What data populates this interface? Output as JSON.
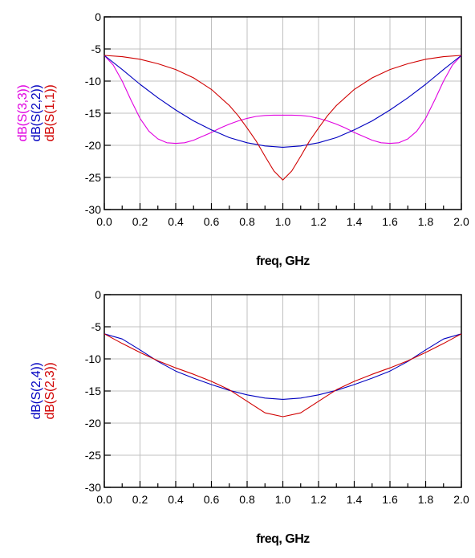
{
  "chart_data": [
    {
      "type": "line",
      "xlabel": "freq, GHz",
      "xlim": [
        0,
        2.0
      ],
      "ylim": [
        -30,
        0
      ],
      "xticks": [
        "0.0",
        "0.2",
        "0.4",
        "0.6",
        "0.8",
        "1.0",
        "1.2",
        "1.4",
        "1.6",
        "1.8",
        "2.0"
      ],
      "yticks": [
        "0",
        "-5",
        "-10",
        "-15",
        "-20",
        "-25",
        "-30"
      ],
      "grid": true,
      "series": [
        {
          "name": "dB(S(3,3))",
          "color": "#e000e0",
          "x": [
            0.0,
            0.05,
            0.1,
            0.15,
            0.2,
            0.25,
            0.3,
            0.35,
            0.4,
            0.45,
            0.5,
            0.55,
            0.6,
            0.65,
            0.7,
            0.75,
            0.8,
            0.85,
            0.9,
            0.95,
            1.0,
            1.05,
            1.1,
            1.15,
            1.2,
            1.25,
            1.3,
            1.35,
            1.4,
            1.45,
            1.5,
            1.55,
            1.6,
            1.65,
            1.7,
            1.75,
            1.8,
            1.85,
            1.9,
            1.95,
            2.0
          ],
          "y": [
            -6.0,
            -7.5,
            -10.0,
            -13.0,
            -15.8,
            -17.8,
            -19.0,
            -19.6,
            -19.7,
            -19.6,
            -19.2,
            -18.6,
            -18.0,
            -17.3,
            -16.7,
            -16.2,
            -15.8,
            -15.5,
            -15.35,
            -15.3,
            -15.3,
            -15.3,
            -15.35,
            -15.5,
            -15.8,
            -16.2,
            -16.7,
            -17.3,
            -18.0,
            -18.6,
            -19.2,
            -19.6,
            -19.7,
            -19.6,
            -19.0,
            -17.8,
            -15.8,
            -13.0,
            -10.0,
            -7.5,
            -6.0
          ]
        },
        {
          "name": "dB(S(2,2))",
          "color": "#0000c0",
          "x": [
            0.0,
            0.1,
            0.2,
            0.3,
            0.4,
            0.5,
            0.6,
            0.7,
            0.8,
            0.9,
            1.0,
            1.1,
            1.2,
            1.3,
            1.4,
            1.5,
            1.6,
            1.7,
            1.8,
            1.9,
            2.0
          ],
          "y": [
            -6.0,
            -8.2,
            -10.5,
            -12.6,
            -14.5,
            -16.2,
            -17.6,
            -18.8,
            -19.6,
            -20.1,
            -20.3,
            -20.1,
            -19.6,
            -18.8,
            -17.6,
            -16.2,
            -14.5,
            -12.6,
            -10.5,
            -8.2,
            -6.0
          ]
        },
        {
          "name": "dB(S(1,1))",
          "color": "#d00000",
          "x": [
            0.0,
            0.1,
            0.2,
            0.3,
            0.4,
            0.5,
            0.6,
            0.7,
            0.75,
            0.8,
            0.85,
            0.9,
            0.95,
            1.0,
            1.05,
            1.1,
            1.15,
            1.2,
            1.25,
            1.3,
            1.4,
            1.5,
            1.6,
            1.7,
            1.8,
            1.9,
            2.0
          ],
          "y": [
            -6.0,
            -6.2,
            -6.6,
            -7.3,
            -8.2,
            -9.5,
            -11.3,
            -13.8,
            -15.4,
            -17.3,
            -19.3,
            -21.7,
            -24.0,
            -25.4,
            -24.0,
            -21.7,
            -19.3,
            -17.3,
            -15.4,
            -13.8,
            -11.3,
            -9.5,
            -8.2,
            -7.3,
            -6.6,
            -6.2,
            -6.0
          ]
        }
      ]
    },
    {
      "type": "line",
      "xlabel": "freq, GHz",
      "xlim": [
        0,
        2.0
      ],
      "ylim": [
        -30,
        0
      ],
      "xticks": [
        "0.0",
        "0.2",
        "0.4",
        "0.6",
        "0.8",
        "1.0",
        "1.2",
        "1.4",
        "1.6",
        "1.8",
        "2.0"
      ],
      "yticks": [
        "0",
        "-5",
        "-10",
        "-15",
        "-20",
        "-25",
        "-30"
      ],
      "grid": true,
      "series": [
        {
          "name": "dB(S(2,4))",
          "color": "#0000c0",
          "x": [
            0.0,
            0.1,
            0.2,
            0.3,
            0.4,
            0.5,
            0.6,
            0.7,
            0.8,
            0.9,
            1.0,
            1.1,
            1.2,
            1.3,
            1.4,
            1.5,
            1.6,
            1.7,
            1.8,
            1.9,
            2.0
          ],
          "y": [
            -6.1,
            -6.9,
            -8.6,
            -10.4,
            -11.9,
            -13.0,
            -14.0,
            -14.9,
            -15.6,
            -16.1,
            -16.3,
            -16.1,
            -15.6,
            -14.9,
            -14.0,
            -13.0,
            -11.9,
            -10.4,
            -8.6,
            -6.9,
            -6.1
          ]
        },
        {
          "name": "dB(S(2,3))",
          "color": "#d00000",
          "x": [
            0.0,
            0.1,
            0.2,
            0.3,
            0.4,
            0.5,
            0.6,
            0.7,
            0.8,
            0.9,
            1.0,
            1.1,
            1.2,
            1.3,
            1.4,
            1.5,
            1.6,
            1.7,
            1.8,
            1.9,
            2.0
          ],
          "y": [
            -6.1,
            -7.6,
            -9.0,
            -10.3,
            -11.4,
            -12.4,
            -13.5,
            -14.8,
            -16.6,
            -18.4,
            -19.0,
            -18.4,
            -16.6,
            -14.8,
            -13.5,
            -12.4,
            -11.4,
            -10.3,
            -9.0,
            -7.6,
            -6.1
          ]
        }
      ]
    }
  ]
}
